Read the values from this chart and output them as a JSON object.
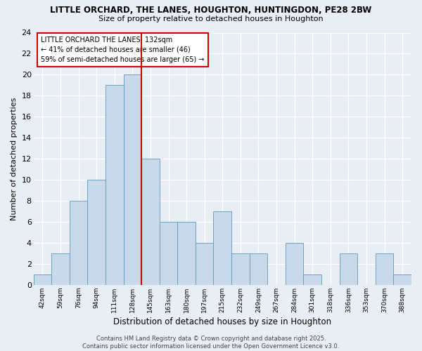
{
  "title_line1": "LITTLE ORCHARD, THE LANES, HOUGHTON, HUNTINGDON, PE28 2BW",
  "title_line2": "Size of property relative to detached houses in Houghton",
  "xlabel": "Distribution of detached houses by size in Houghton",
  "ylabel": "Number of detached properties",
  "bar_color": "#c8daea",
  "bar_edge_color": "#5a9abf",
  "bins": [
    "42sqm",
    "59sqm",
    "76sqm",
    "94sqm",
    "111sqm",
    "128sqm",
    "145sqm",
    "163sqm",
    "180sqm",
    "197sqm",
    "215sqm",
    "232sqm",
    "249sqm",
    "267sqm",
    "284sqm",
    "301sqm",
    "318sqm",
    "336sqm",
    "353sqm",
    "370sqm",
    "388sqm"
  ],
  "values": [
    1,
    3,
    8,
    10,
    19,
    20,
    12,
    6,
    6,
    4,
    7,
    3,
    3,
    0,
    4,
    1,
    0,
    3,
    0,
    3,
    1
  ],
  "vline_x": 5.5,
  "vline_color": "#cc0000",
  "ylim": [
    0,
    24
  ],
  "yticks": [
    0,
    2,
    4,
    6,
    8,
    10,
    12,
    14,
    16,
    18,
    20,
    22,
    24
  ],
  "annotation_title": "LITTLE ORCHARD THE LANES: 132sqm",
  "annotation_line1": "← 41% of detached houses are smaller (46)",
  "annotation_line2": "59% of semi-detached houses are larger (65) →",
  "annotation_box_color": "#ffffff",
  "annotation_box_edge": "#cc0000",
  "footer_line1": "Contains HM Land Registry data © Crown copyright and database right 2025.",
  "footer_line2": "Contains public sector information licensed under the Open Government Licence v3.0.",
  "background_color": "#e8eef4",
  "grid_color": "#ffffff"
}
